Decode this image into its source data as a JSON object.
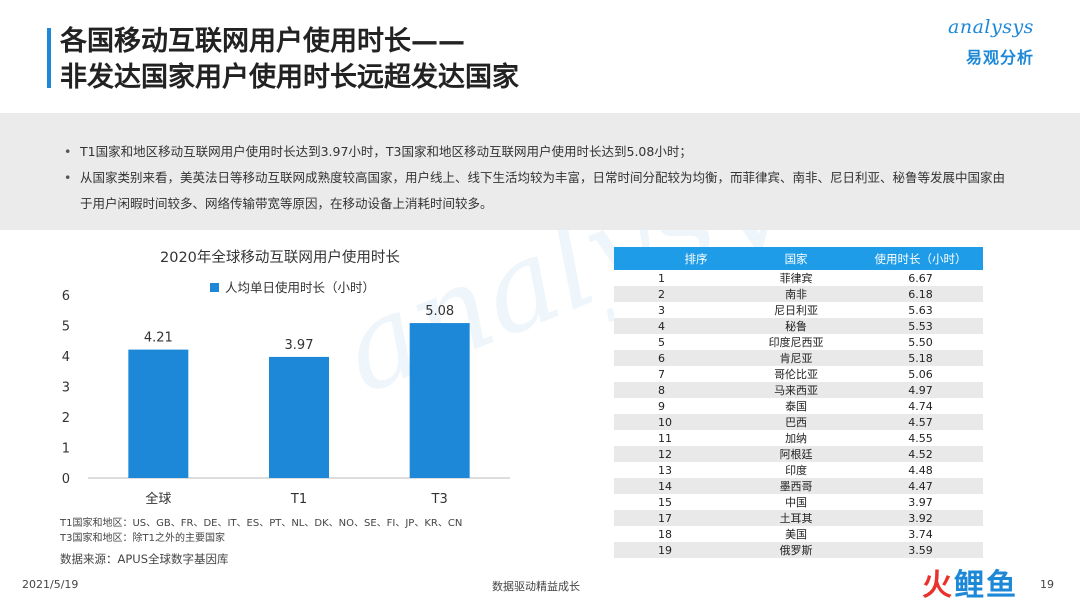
{
  "header": {
    "title_line1": "各国移动互联网用户使用时长——",
    "title_line2": "非发达国家用户使用时长远超发达国家",
    "logo_en": "analysys",
    "logo_cn": "易观分析"
  },
  "summary": {
    "bullets": [
      "T1国家和地区移动互联网用户使用时长达到3.97小时，T3国家和地区移动互联网用户使用时长达到5.08小时；",
      "从国家类别来看，美英法日等移动互联网成熟度较高国家，用户线上、线下生活均较为丰富，日常时间分配较为均衡，而菲律宾、南非、尼日利亚、秘鲁等发展中国家由于用户闲暇时间较多、网络传输带宽等原因，在移动设备上消耗时间较多。"
    ]
  },
  "chart_data": {
    "type": "bar",
    "title": "2020年全球移动互联网用户使用时长",
    "categories": [
      "全球",
      "T1",
      "T3"
    ],
    "series": [
      {
        "name": "人均单日使用时长（小时）",
        "values": [
          4.21,
          3.97,
          5.08
        ]
      }
    ],
    "y_ticks": [
      "0",
      "1",
      "2",
      "3",
      "4",
      "5",
      "6"
    ],
    "ylim": [
      0,
      6
    ],
    "grid": false,
    "legend": "top",
    "color": "#1e88d8"
  },
  "notes": {
    "t1": "T1国家和地区：US、GB、FR、DE、IT、ES、PT、NL、DK、NO、SE、FI、JP、KR、CN",
    "t3": "T3国家和地区：除T1之外的主要国家",
    "source": "数据来源：APUS全球数字基因库"
  },
  "table": {
    "headers": [
      "排序",
      "国家",
      "使用时长（小时）"
    ],
    "rows": [
      [
        "1",
        "菲律宾",
        "6.67"
      ],
      [
        "2",
        "南非",
        "6.18"
      ],
      [
        "3",
        "尼日利亚",
        "5.63"
      ],
      [
        "4",
        "秘鲁",
        "5.53"
      ],
      [
        "5",
        "印度尼西亚",
        "5.50"
      ],
      [
        "6",
        "肯尼亚",
        "5.18"
      ],
      [
        "7",
        "哥伦比亚",
        "5.06"
      ],
      [
        "8",
        "马来西亚",
        "4.97"
      ],
      [
        "9",
        "泰国",
        "4.74"
      ],
      [
        "10",
        "巴西",
        "4.57"
      ],
      [
        "11",
        "加纳",
        "4.55"
      ],
      [
        "12",
        "阿根廷",
        "4.52"
      ],
      [
        "13",
        "印度",
        "4.48"
      ],
      [
        "14",
        "墨西哥",
        "4.47"
      ],
      [
        "15",
        "中国",
        "3.97"
      ],
      [
        "17",
        "土耳其",
        "3.92"
      ],
      [
        "18",
        "美国",
        "3.74"
      ],
      [
        "19",
        "俄罗斯",
        "3.59"
      ]
    ],
    "header_color": "#1e9ce8"
  },
  "footer": {
    "date": "2021/5/19",
    "slogan": "数据驱动精益成长",
    "page": "19",
    "watermark_1": "火",
    "watermark_2": "鲤",
    "watermark_3": "鱼"
  }
}
